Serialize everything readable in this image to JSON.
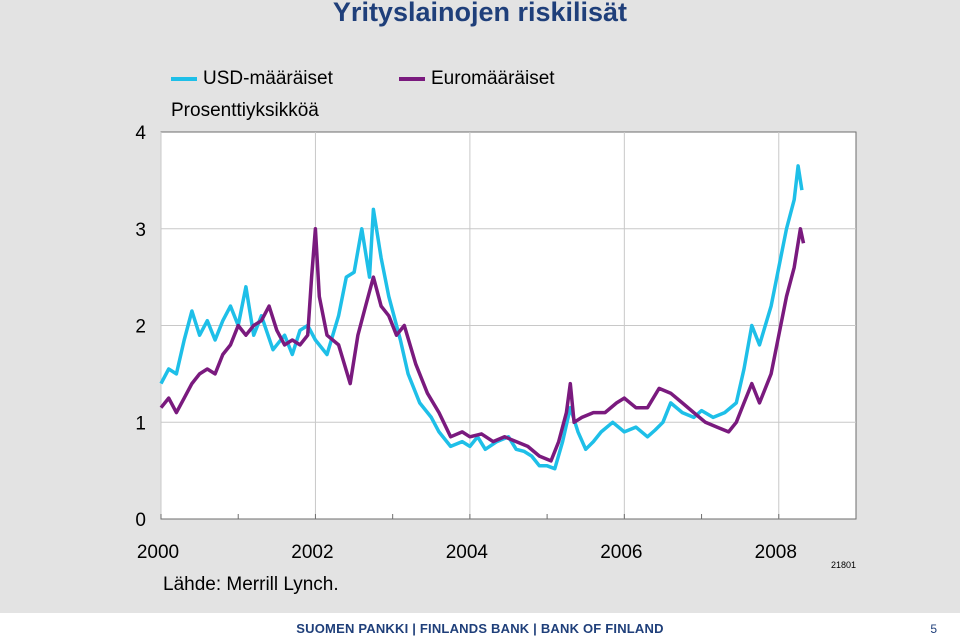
{
  "slide": {
    "title": "Yrityslainojen riskilisät",
    "source": "Lähde: Merrill Lynch.",
    "code": "21801",
    "footer": "SUOMEN PANKKI | FINLANDS BANK | BANK OF FINLAND",
    "page_number": "5"
  },
  "colors": {
    "usd": "#1ebfe8",
    "eur": "#7a1a7e",
    "plot_bg": "#ffffff",
    "grid": "#c8c8c8",
    "title": "#1f3f7a"
  },
  "chart_data": {
    "type": "line",
    "title": "Yrityslainojen riskilisät",
    "ylabel": "Prosenttiyksikköä",
    "xlabel": "",
    "ylim": [
      0,
      4
    ],
    "xlim": [
      2000,
      2009
    ],
    "yticks": [
      "0",
      "1",
      "2",
      "3",
      "4"
    ],
    "xticks": [
      "2000",
      "2002",
      "2004",
      "2006",
      "2008"
    ],
    "grid": true,
    "legend": "top",
    "series": [
      {
        "name": "USD-määräiset",
        "color": "#1ebfe8",
        "points": [
          [
            2000.0,
            1.4
          ],
          [
            2000.1,
            1.55
          ],
          [
            2000.2,
            1.5
          ],
          [
            2000.3,
            1.85
          ],
          [
            2000.4,
            2.15
          ],
          [
            2000.5,
            1.9
          ],
          [
            2000.6,
            2.05
          ],
          [
            2000.7,
            1.85
          ],
          [
            2000.8,
            2.05
          ],
          [
            2000.9,
            2.2
          ],
          [
            2001.0,
            2.0
          ],
          [
            2001.1,
            2.4
          ],
          [
            2001.2,
            1.9
          ],
          [
            2001.3,
            2.1
          ],
          [
            2001.45,
            1.75
          ],
          [
            2001.6,
            1.9
          ],
          [
            2001.7,
            1.7
          ],
          [
            2001.8,
            1.95
          ],
          [
            2001.9,
            2.0
          ],
          [
            2002.0,
            1.85
          ],
          [
            2002.15,
            1.7
          ],
          [
            2002.3,
            2.1
          ],
          [
            2002.4,
            2.5
          ],
          [
            2002.5,
            2.55
          ],
          [
            2002.6,
            3.0
          ],
          [
            2002.7,
            2.5
          ],
          [
            2002.75,
            3.2
          ],
          [
            2002.85,
            2.7
          ],
          [
            2002.95,
            2.3
          ],
          [
            2003.1,
            1.85
          ],
          [
            2003.2,
            1.5
          ],
          [
            2003.35,
            1.2
          ],
          [
            2003.5,
            1.05
          ],
          [
            2003.6,
            0.9
          ],
          [
            2003.75,
            0.75
          ],
          [
            2003.9,
            0.8
          ],
          [
            2004.0,
            0.75
          ],
          [
            2004.1,
            0.85
          ],
          [
            2004.2,
            0.72
          ],
          [
            2004.35,
            0.8
          ],
          [
            2004.5,
            0.85
          ],
          [
            2004.6,
            0.72
          ],
          [
            2004.7,
            0.7
          ],
          [
            2004.8,
            0.65
          ],
          [
            2004.9,
            0.55
          ],
          [
            2005.0,
            0.55
          ],
          [
            2005.1,
            0.52
          ],
          [
            2005.2,
            0.8
          ],
          [
            2005.3,
            1.15
          ],
          [
            2005.4,
            0.9
          ],
          [
            2005.5,
            0.72
          ],
          [
            2005.6,
            0.8
          ],
          [
            2005.7,
            0.9
          ],
          [
            2005.85,
            1.0
          ],
          [
            2006.0,
            0.9
          ],
          [
            2006.15,
            0.95
          ],
          [
            2006.3,
            0.85
          ],
          [
            2006.4,
            0.92
          ],
          [
            2006.5,
            1.0
          ],
          [
            2006.6,
            1.2
          ],
          [
            2006.75,
            1.1
          ],
          [
            2006.9,
            1.05
          ],
          [
            2007.0,
            1.12
          ],
          [
            2007.15,
            1.05
          ],
          [
            2007.3,
            1.1
          ],
          [
            2007.45,
            1.2
          ],
          [
            2007.55,
            1.55
          ],
          [
            2007.65,
            2.0
          ],
          [
            2007.75,
            1.8
          ],
          [
            2007.9,
            2.2
          ],
          [
            2008.0,
            2.6
          ],
          [
            2008.1,
            3.0
          ],
          [
            2008.2,
            3.3
          ],
          [
            2008.25,
            3.65
          ],
          [
            2008.3,
            3.4
          ]
        ]
      },
      {
        "name": "Euromääräiset",
        "color": "#7a1a7e",
        "points": [
          [
            2000.0,
            1.15
          ],
          [
            2000.1,
            1.25
          ],
          [
            2000.2,
            1.1
          ],
          [
            2000.3,
            1.25
          ],
          [
            2000.4,
            1.4
          ],
          [
            2000.5,
            1.5
          ],
          [
            2000.6,
            1.55
          ],
          [
            2000.7,
            1.5
          ],
          [
            2000.8,
            1.7
          ],
          [
            2000.9,
            1.8
          ],
          [
            2001.0,
            2.0
          ],
          [
            2001.1,
            1.9
          ],
          [
            2001.2,
            2.0
          ],
          [
            2001.3,
            2.05
          ],
          [
            2001.4,
            2.2
          ],
          [
            2001.5,
            1.95
          ],
          [
            2001.6,
            1.8
          ],
          [
            2001.7,
            1.85
          ],
          [
            2001.8,
            1.8
          ],
          [
            2001.9,
            1.9
          ],
          [
            2001.95,
            2.5
          ],
          [
            2002.0,
            3.0
          ],
          [
            2002.05,
            2.3
          ],
          [
            2002.15,
            1.9
          ],
          [
            2002.3,
            1.8
          ],
          [
            2002.45,
            1.4
          ],
          [
            2002.55,
            1.9
          ],
          [
            2002.65,
            2.2
          ],
          [
            2002.75,
            2.5
          ],
          [
            2002.85,
            2.2
          ],
          [
            2002.95,
            2.1
          ],
          [
            2003.05,
            1.9
          ],
          [
            2003.15,
            2.0
          ],
          [
            2003.3,
            1.6
          ],
          [
            2003.45,
            1.3
          ],
          [
            2003.6,
            1.1
          ],
          [
            2003.75,
            0.85
          ],
          [
            2003.9,
            0.9
          ],
          [
            2004.0,
            0.85
          ],
          [
            2004.15,
            0.88
          ],
          [
            2004.3,
            0.8
          ],
          [
            2004.45,
            0.85
          ],
          [
            2004.6,
            0.8
          ],
          [
            2004.75,
            0.75
          ],
          [
            2004.9,
            0.65
          ],
          [
            2005.05,
            0.6
          ],
          [
            2005.15,
            0.8
          ],
          [
            2005.25,
            1.1
          ],
          [
            2005.3,
            1.4
          ],
          [
            2005.35,
            1.0
          ],
          [
            2005.45,
            1.05
          ],
          [
            2005.6,
            1.1
          ],
          [
            2005.75,
            1.1
          ],
          [
            2005.9,
            1.2
          ],
          [
            2006.0,
            1.25
          ],
          [
            2006.15,
            1.15
          ],
          [
            2006.3,
            1.15
          ],
          [
            2006.45,
            1.35
          ],
          [
            2006.6,
            1.3
          ],
          [
            2006.75,
            1.2
          ],
          [
            2006.9,
            1.1
          ],
          [
            2007.05,
            1.0
          ],
          [
            2007.2,
            0.95
          ],
          [
            2007.35,
            0.9
          ],
          [
            2007.45,
            1.0
          ],
          [
            2007.55,
            1.2
          ],
          [
            2007.65,
            1.4
          ],
          [
            2007.75,
            1.2
          ],
          [
            2007.9,
            1.5
          ],
          [
            2008.0,
            1.9
          ],
          [
            2008.1,
            2.3
          ],
          [
            2008.2,
            2.6
          ],
          [
            2008.28,
            3.0
          ],
          [
            2008.32,
            2.85
          ]
        ]
      }
    ]
  }
}
